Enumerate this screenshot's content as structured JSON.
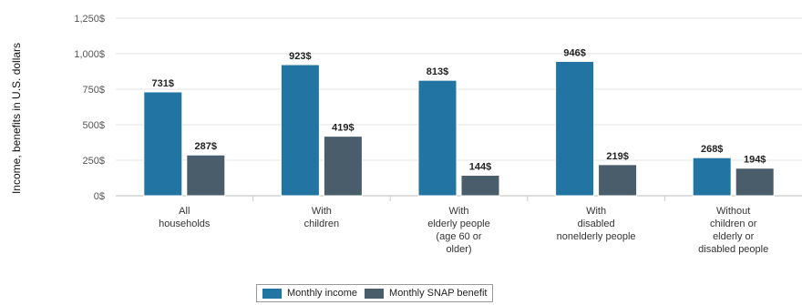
{
  "chart_data": {
    "type": "bar",
    "ylabel": "Income, benefits in U.S. dollars",
    "ylim": [
      0,
      1250
    ],
    "yticks": [
      "0$",
      "250$",
      "500$",
      "750$",
      "1,000$",
      "1,250$"
    ],
    "ytick_values": [
      0,
      250,
      500,
      750,
      1000,
      1250
    ],
    "grid": true,
    "legend_position": "bottom-center",
    "categories": [
      [
        "All",
        "households"
      ],
      [
        "With",
        "children"
      ],
      [
        "With",
        "elderly people",
        "(age 60 or",
        "older)"
      ],
      [
        "With",
        "disabled",
        "nonelderly people"
      ],
      [
        "Without",
        "children or",
        "elderly or",
        "disabled people"
      ]
    ],
    "series": [
      {
        "name": "Monthly income",
        "color": "#2275a3",
        "values": [
          731,
          923,
          813,
          946,
          268
        ],
        "labels": [
          "731$",
          "923$",
          "813$",
          "946$",
          "268$"
        ]
      },
      {
        "name": "Monthly SNAP benefit",
        "color": "#4a5d6b",
        "values": [
          287,
          419,
          144,
          219,
          194
        ],
        "labels": [
          "287$",
          "419$",
          "144$",
          "219$",
          "194$"
        ]
      }
    ]
  }
}
